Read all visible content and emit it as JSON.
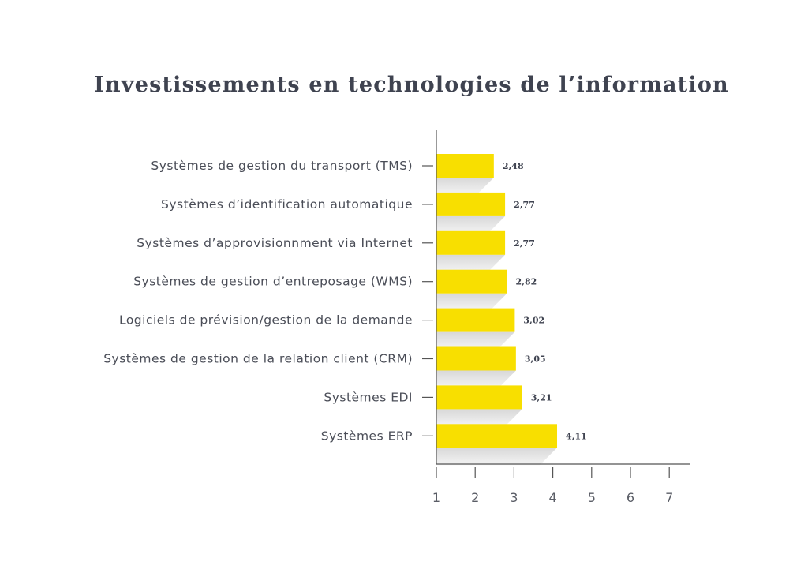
{
  "chart_data": {
    "type": "bar",
    "orientation": "horizontal",
    "title": "Investissements en technologies de l’information",
    "categories": [
      "Systèmes de gestion du transport (TMS)",
      "Systèmes d’identification automatique",
      "Systèmes d’approvisionnment via Internet",
      "Systèmes de gestion d’entreposage (WMS)",
      "Logiciels de prévision/gestion de la demande",
      "Systèmes de gestion de la relation client (CRM)",
      "Systèmes EDI",
      "Systèmes ERP"
    ],
    "values": [
      2.48,
      2.77,
      2.77,
      2.82,
      3.02,
      3.05,
      3.21,
      4.11
    ],
    "value_labels": [
      "2,48",
      "2,77",
      "2,77",
      "2,82",
      "3,02",
      "3,05",
      "3,21",
      "4,11"
    ],
    "xlim": [
      1,
      7
    ],
    "xticks": [
      "1",
      "2",
      "3",
      "4",
      "5",
      "6",
      "7"
    ],
    "xlabel": "",
    "ylabel": "",
    "grid": false,
    "legend": "none",
    "bar_color": "#f8df00",
    "shadow_color": "#e6e6e6",
    "text_color": "#4a4d57",
    "axis_color": "#555555"
  }
}
